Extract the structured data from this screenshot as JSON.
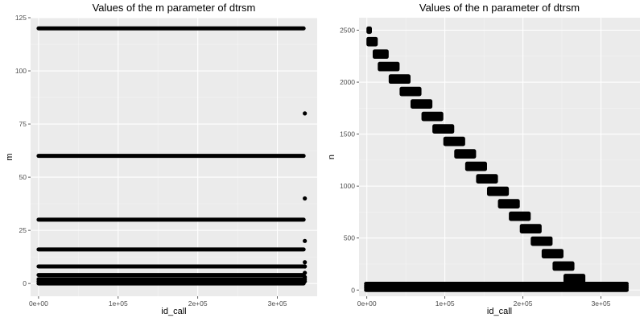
{
  "chart_data": [
    {
      "type": "scatter",
      "title": "Values of the m parameter of dtrsm",
      "xlabel": "id_call",
      "ylabel": "m",
      "xlim": [
        -10000,
        350000
      ],
      "ylim": [
        -6,
        125
      ],
      "x_ticks": [
        0,
        100000,
        200000,
        300000
      ],
      "x_tick_labels": [
        "0e+00",
        "1e+05",
        "2e+05",
        "3e+05"
      ],
      "y_ticks": [
        0,
        25,
        50,
        75,
        100,
        125
      ],
      "y_tick_labels": [
        "0",
        "25",
        "50",
        "75",
        "100",
        "125"
      ],
      "grid": true,
      "bands": [
        {
          "y": 120,
          "x_start": 0,
          "x_end": 333000
        },
        {
          "y": 60,
          "x_start": 0,
          "x_end": 333000
        },
        {
          "y": 30,
          "x_start": 0,
          "x_end": 333000
        },
        {
          "y": 16,
          "x_start": 0,
          "x_end": 333000
        },
        {
          "y": 8,
          "x_start": 0,
          "x_end": 333000
        },
        {
          "y": 4,
          "x_start": 0,
          "x_end": 333000
        },
        {
          "y": 2,
          "x_start": 0,
          "x_end": 333000
        },
        {
          "y": 1,
          "x_start": 0,
          "x_end": 333000
        },
        {
          "y": 0,
          "x_start": 0,
          "x_end": 333000
        }
      ],
      "points": [
        {
          "x": 334500,
          "y": 80
        },
        {
          "x": 334500,
          "y": 40
        },
        {
          "x": 334500,
          "y": 20
        },
        {
          "x": 334500,
          "y": 10
        },
        {
          "x": 334500,
          "y": 8
        },
        {
          "x": 334500,
          "y": 5
        },
        {
          "x": 334500,
          "y": 3
        },
        {
          "x": 334500,
          "y": 2
        },
        {
          "x": 334500,
          "y": 1
        }
      ]
    },
    {
      "type": "scatter",
      "title": "Values of the n parameter of dtrsm",
      "xlabel": "id_call",
      "ylabel": "n",
      "xlim": [
        -10000,
        350000
      ],
      "ylim": [
        -60,
        2620
      ],
      "x_ticks": [
        0,
        100000,
        200000,
        300000
      ],
      "x_tick_labels": [
        "0e+00",
        "1e+05",
        "2e+05",
        "3e+05"
      ],
      "y_ticks": [
        0,
        500,
        1000,
        1500,
        2000,
        2500
      ],
      "y_tick_labels": [
        "0",
        "500",
        "1000",
        "1500",
        "2000",
        "2500"
      ],
      "grid": true,
      "bands": [
        {
          "y": 0,
          "x_start": -1000,
          "x_end": 333000
        },
        {
          "y": 20,
          "x_start": -1000,
          "x_end": 333000
        },
        {
          "y": 40,
          "x_start": -1000,
          "x_end": 333000
        },
        {
          "y": 60,
          "x_start": -1000,
          "x_end": 333000
        }
      ],
      "staircase": [
        {
          "x_start": -500,
          "x_end": 6500,
          "y_low": 2480,
          "y_high": 2520
        },
        {
          "x_start": -500,
          "x_end": 14000,
          "y_low": 2360,
          "y_high": 2420
        },
        {
          "x_start": 7500,
          "x_end": 28000,
          "y_low": 2240,
          "y_high": 2300
        },
        {
          "x_start": 14000,
          "x_end": 42000,
          "y_low": 2120,
          "y_high": 2180
        },
        {
          "x_start": 28000,
          "x_end": 56000,
          "y_low": 2000,
          "y_high": 2060
        },
        {
          "x_start": 42000,
          "x_end": 70000,
          "y_low": 1880,
          "y_high": 1940
        },
        {
          "x_start": 56000,
          "x_end": 84000,
          "y_low": 1760,
          "y_high": 1820
        },
        {
          "x_start": 70000,
          "x_end": 98000,
          "y_low": 1640,
          "y_high": 1700
        },
        {
          "x_start": 84000,
          "x_end": 112000,
          "y_low": 1520,
          "y_high": 1580
        },
        {
          "x_start": 98000,
          "x_end": 126000,
          "y_low": 1400,
          "y_high": 1460
        },
        {
          "x_start": 112000,
          "x_end": 140000,
          "y_low": 1280,
          "y_high": 1340
        },
        {
          "x_start": 126000,
          "x_end": 154000,
          "y_low": 1160,
          "y_high": 1220
        },
        {
          "x_start": 140000,
          "x_end": 168000,
          "y_low": 1040,
          "y_high": 1100
        },
        {
          "x_start": 154000,
          "x_end": 182000,
          "y_low": 920,
          "y_high": 980
        },
        {
          "x_start": 168000,
          "x_end": 196000,
          "y_low": 800,
          "y_high": 860
        },
        {
          "x_start": 182000,
          "x_end": 210000,
          "y_low": 680,
          "y_high": 740
        },
        {
          "x_start": 196000,
          "x_end": 224000,
          "y_low": 560,
          "y_high": 620
        },
        {
          "x_start": 210000,
          "x_end": 238000,
          "y_low": 440,
          "y_high": 500
        },
        {
          "x_start": 224000,
          "x_end": 252000,
          "y_low": 320,
          "y_high": 380
        },
        {
          "x_start": 238000,
          "x_end": 266000,
          "y_low": 200,
          "y_high": 260
        },
        {
          "x_start": 252000,
          "x_end": 280000,
          "y_low": 80,
          "y_high": 140
        },
        {
          "x_start": 266000,
          "x_end": 294000,
          "y_low": 10,
          "y_high": 40
        }
      ],
      "points": []
    }
  ]
}
